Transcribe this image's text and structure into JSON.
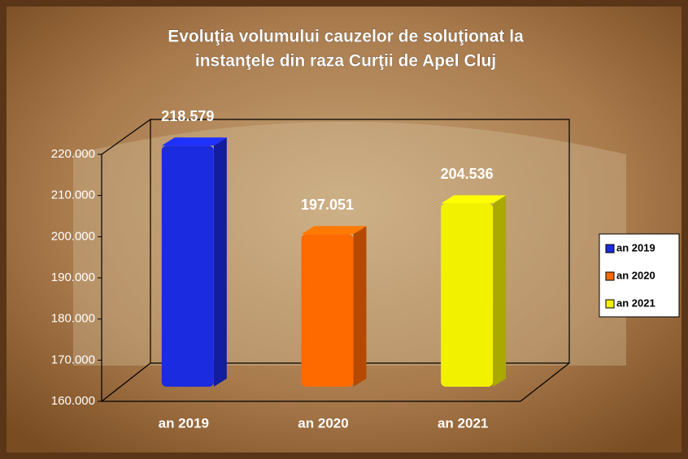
{
  "chart_data": {
    "type": "bar3d",
    "title": "Evoluţia volumului cauzelor de soluţionat la",
    "subtitle": "instanţele din raza Curţii de Apel Cluj",
    "categories": [
      "an 2019",
      "an 2020",
      "an 2021"
    ],
    "values": [
      218579,
      197051,
      204536
    ],
    "value_labels": [
      "218.579",
      "197.051",
      "204.536"
    ],
    "colors": [
      "#1a2be0",
      "#ff6a00",
      "#f2f200"
    ],
    "ylim": [
      160000,
      220000
    ],
    "yticks": [
      {
        "value": 160000,
        "label": "160.000"
      },
      {
        "value": 170000,
        "label": "170.000"
      },
      {
        "value": 180000,
        "label": "180.000"
      },
      {
        "value": 190000,
        "label": "190.000"
      },
      {
        "value": 200000,
        "label": "200.000"
      },
      {
        "value": 210000,
        "label": "210.000"
      },
      {
        "value": 220000,
        "label": "220.000"
      }
    ],
    "legend": "right"
  }
}
